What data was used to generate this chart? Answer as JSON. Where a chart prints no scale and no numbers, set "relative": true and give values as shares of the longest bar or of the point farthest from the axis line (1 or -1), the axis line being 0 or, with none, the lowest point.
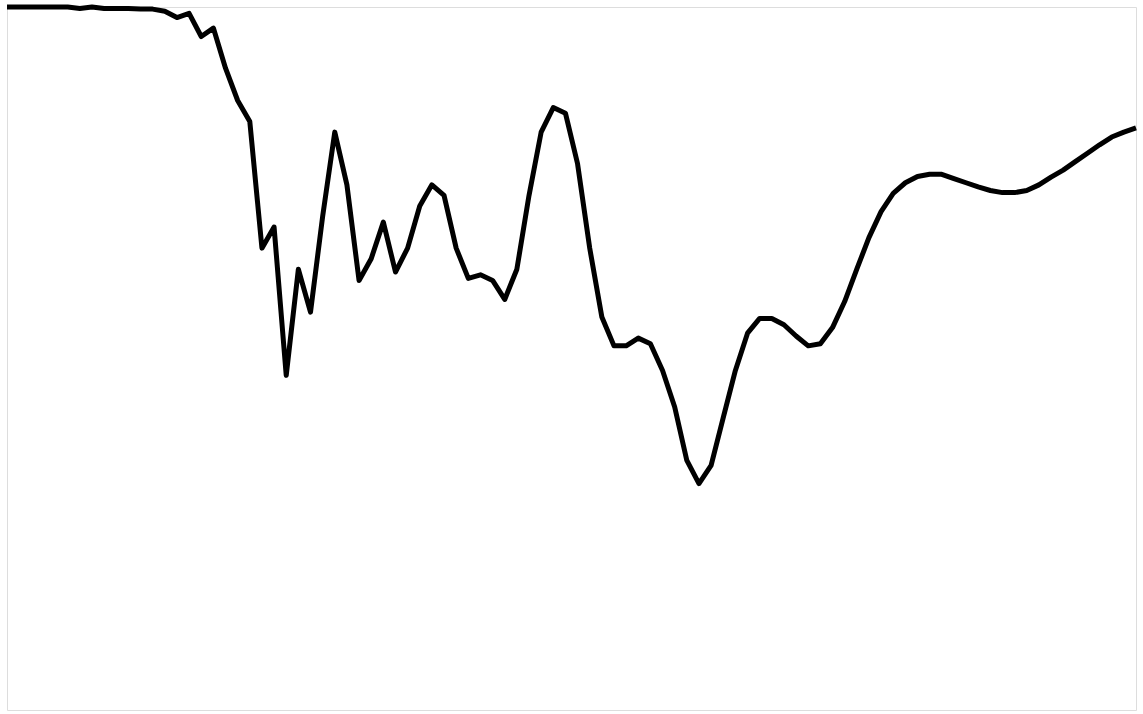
{
  "chart_data": {
    "type": "line",
    "relative": true,
    "categories": [
      null,
      null,
      null,
      null,
      null,
      null,
      null,
      null,
      null,
      null,
      null,
      null,
      null,
      null,
      null,
      null,
      null,
      null,
      null,
      null,
      null,
      null,
      null,
      null,
      null,
      null,
      null,
      null,
      null,
      null,
      null,
      null,
      null,
      null,
      null,
      null,
      null,
      null,
      null,
      null,
      null,
      null,
      null,
      null,
      null,
      null,
      null,
      null,
      null,
      null,
      null,
      null,
      null,
      null,
      null,
      null,
      null,
      null,
      null,
      null,
      null,
      null,
      null,
      null,
      null,
      null,
      null,
      null,
      null,
      null,
      null,
      null,
      null,
      null,
      null,
      null,
      null,
      null,
      null,
      null,
      null,
      null,
      null,
      null,
      null,
      null,
      null,
      null,
      null,
      null,
      null,
      null,
      null,
      null
    ],
    "series": [
      {
        "color": "#000000",
        "values": [
          1,
          1,
          1,
          1,
          1,
          1,
          0.998,
          1,
          0.998,
          0.998,
          0.998,
          0.997,
          0.997,
          0.994,
          0.985,
          0.991,
          0.958,
          0.97,
          0.913,
          0.867,
          0.837,
          0.657,
          0.687,
          0.476,
          0.627,
          0.566,
          0.702,
          0.822,
          0.747,
          0.611,
          0.642,
          0.694,
          0.623,
          0.657,
          0.717,
          0.747,
          0.732,
          0.657,
          0.614,
          0.619,
          0.611,
          0.584,
          0.627,
          0.732,
          0.822,
          0.857,
          0.849,
          0.777,
          0.657,
          0.559,
          0.518,
          0.518,
          0.529,
          0.521,
          0.483,
          0.431,
          0.355,
          0.322,
          0.348,
          0.416,
          0.483,
          0.536,
          0.557,
          0.557,
          0.548,
          0.532,
          0.518,
          0.521,
          0.544,
          0.581,
          0.627,
          0.672,
          0.709,
          0.735,
          0.75,
          0.759,
          0.762,
          0.762,
          0.756,
          0.75,
          0.744,
          0.739,
          0.736,
          0.736,
          0.739,
          0.747,
          0.758,
          0.768,
          0.78,
          0.792,
          0.804,
          0.815,
          0.822,
          0.828
        ]
      }
    ]
  }
}
